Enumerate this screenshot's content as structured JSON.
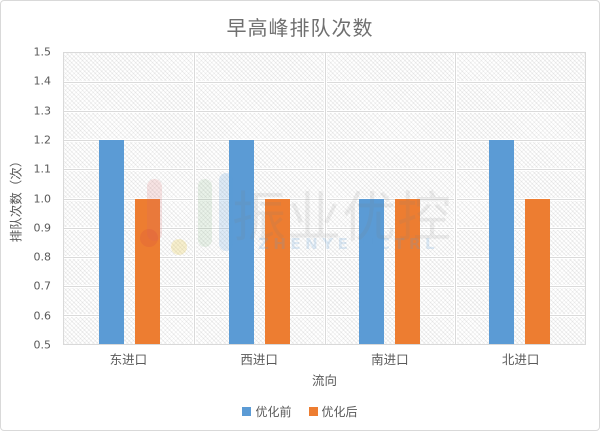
{
  "chart_data": {
    "type": "bar",
    "title": "早高峰排队次数",
    "xlabel": "流向",
    "ylabel": "排队次数（次）",
    "categories": [
      "东进口",
      "西进口",
      "南进口",
      "北进口"
    ],
    "series": [
      {
        "name": "优化前",
        "color": "#5B9BD5",
        "values": [
          1.2,
          1.2,
          1.0,
          1.2
        ]
      },
      {
        "name": "优化后",
        "color": "#ED7D31",
        "values": [
          1.0,
          1.0,
          1.0,
          1.0
        ]
      }
    ],
    "ylim": [
      0.5,
      1.5
    ],
    "y_ticks": [
      "1.5",
      "1.4",
      "1.3",
      "1.2",
      "1.1",
      "1.0",
      "0.9",
      "0.8",
      "0.7",
      "0.6",
      "0.5"
    ],
    "grid": true,
    "legend_position": "bottom",
    "plot_background": "diagonal-hatch"
  },
  "watermark": {
    "text": "振业优控",
    "subtext": "ZHENYE UCTRL",
    "logo_colors": {
      "red_bar": "#D96C6C",
      "green_bar": "#6AA86A",
      "blue_bar": "#5B9BD5",
      "red_dot": "#D64541",
      "yellow_dot": "#E3C23C"
    }
  },
  "colors": {
    "border": "#D9D9D9",
    "gridline": "#DADADA",
    "tick_text": "#595959",
    "title_text": "#6F6F6F"
  }
}
